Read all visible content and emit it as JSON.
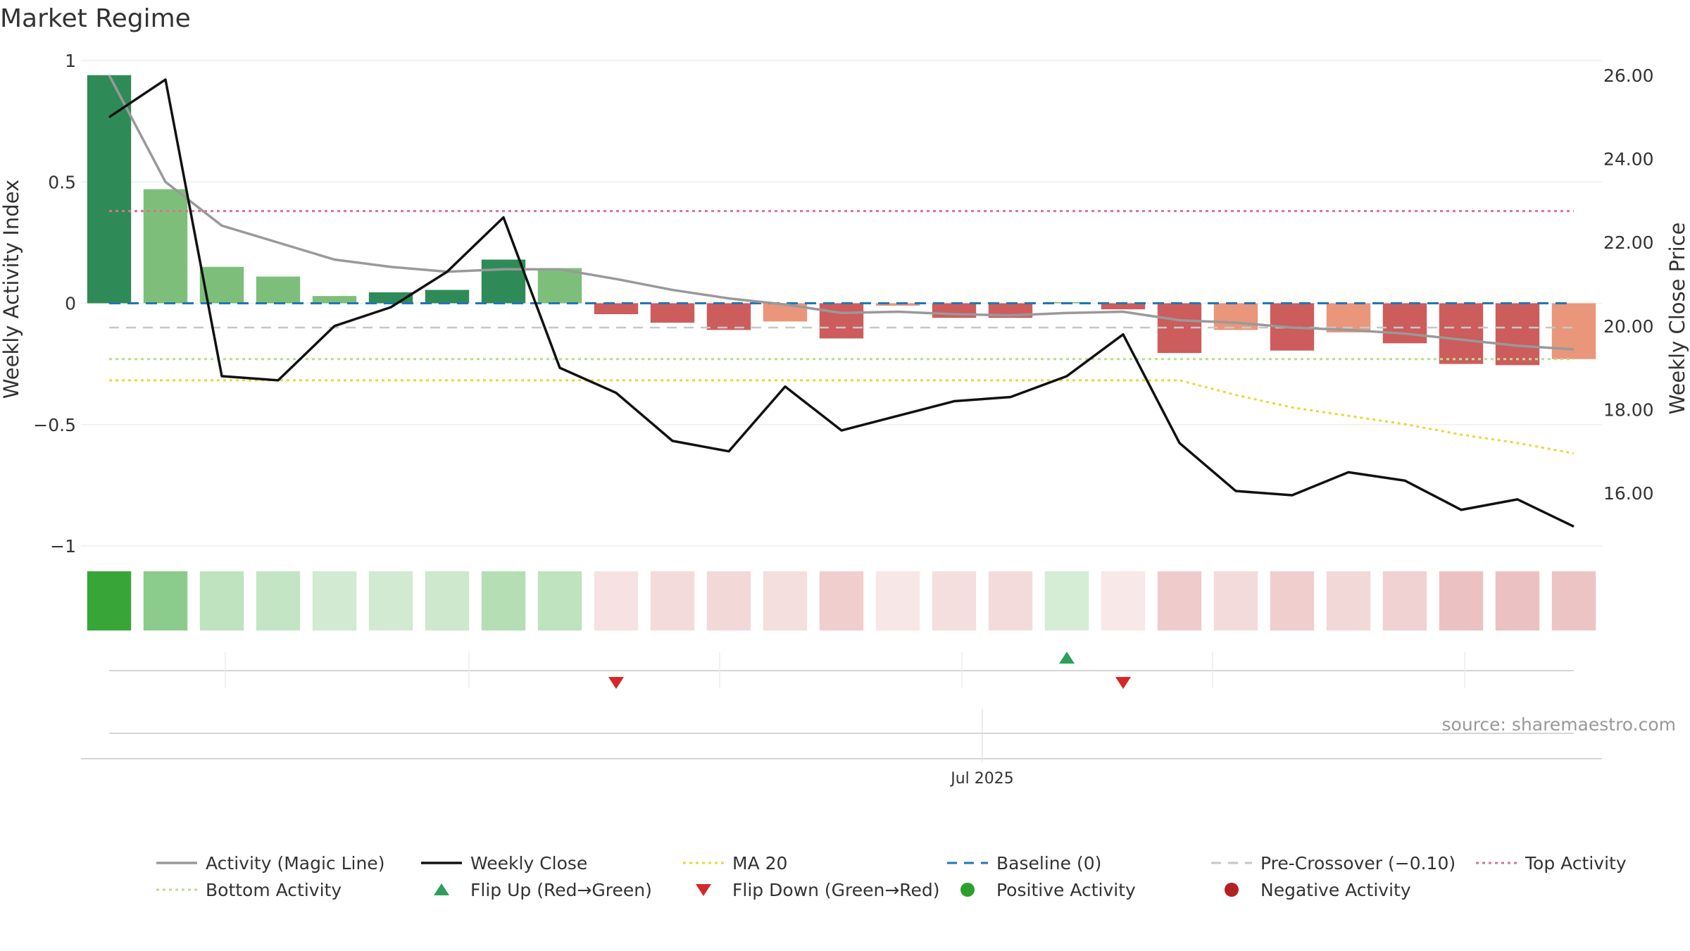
{
  "title": "Market Regime",
  "source": "source: sharemaestro.com",
  "colors": {
    "strong_green": "#2e8b57",
    "light_green": "#7dbf7a",
    "strong_red": "#cd5c5c",
    "light_red": "#e9967a",
    "magic_line": "#999999",
    "close_line": "#111111",
    "ma20": "#e8d83a",
    "baseline": "#1f77b4",
    "pre_crossover": "#c7c7c7",
    "top_activity": "#d9748f",
    "bottom_activity": "#b5e08a",
    "flip_up": "#2ca05a",
    "flip_down": "#d62728",
    "positive": "#2ca02c",
    "negative": "#b22222"
  },
  "chart_data": {
    "type": "bar",
    "title": "Market Regime",
    "ylabel": "Weekly Activity Index",
    "y2label": "Weekly Close Price",
    "ylim": [
      -1,
      1
    ],
    "y2lim": [
      15,
      26.3
    ],
    "yticks": [
      {
        "v": 1,
        "label": "1"
      },
      {
        "v": 0.5,
        "label": "0.5"
      },
      {
        "v": 0,
        "label": "0"
      },
      {
        "v": -0.5,
        "label": "−0.5"
      },
      {
        "v": -1,
        "label": "−1"
      }
    ],
    "y2ticks": [
      {
        "v": 26,
        "label": "26.00"
      },
      {
        "v": 24,
        "label": "24.00"
      },
      {
        "v": 22,
        "label": "22.00"
      },
      {
        "v": 20,
        "label": "20.00"
      },
      {
        "v": 18,
        "label": "18.00"
      },
      {
        "v": 16,
        "label": "16.00"
      }
    ],
    "xtick_label": "Jul 2025",
    "xtick_week_index": 15.5,
    "activity": [
      0.94,
      0.47,
      0.15,
      0.11,
      0.03,
      0.045,
      0.055,
      0.18,
      0.145,
      -0.045,
      -0.08,
      -0.11,
      -0.075,
      -0.145,
      -0.01,
      -0.06,
      -0.06,
      0.005,
      -0.025,
      -0.205,
      -0.11,
      -0.195,
      -0.12,
      -0.165,
      -0.25,
      -0.255,
      -0.23
    ],
    "bar_strength": [
      "strong",
      "light",
      "light",
      "light",
      "light",
      "strong",
      "strong",
      "strong",
      "light",
      "strong",
      "strong",
      "strong",
      "light",
      "strong",
      "light",
      "strong",
      "strong",
      "light",
      "strong",
      "strong",
      "light",
      "strong",
      "light",
      "strong",
      "strong",
      "strong",
      "light"
    ],
    "magic_line": [
      0.94,
      0.5,
      0.32,
      0.25,
      0.18,
      0.15,
      0.13,
      0.14,
      0.14,
      0.1,
      0.055,
      0.02,
      -0.005,
      -0.04,
      -0.035,
      -0.045,
      -0.05,
      -0.04,
      -0.035,
      -0.07,
      -0.08,
      -0.1,
      -0.11,
      -0.125,
      -0.15,
      -0.175,
      -0.19
    ],
    "weekly_close": [
      25.0,
      25.9,
      18.8,
      18.7,
      20.0,
      20.45,
      21.3,
      22.6,
      19.0,
      18.4,
      17.25,
      17.0,
      18.55,
      17.5,
      17.85,
      18.2,
      18.3,
      18.8,
      19.8,
      17.2,
      16.05,
      15.95,
      16.5,
      16.3,
      15.6,
      15.85,
      15.2
    ],
    "ma20": [
      null,
      null,
      null,
      null,
      null,
      null,
      null,
      null,
      null,
      null,
      null,
      null,
      null,
      null,
      null,
      null,
      null,
      null,
      null,
      18.7,
      18.35,
      18.05,
      17.85,
      17.65,
      17.4,
      17.2,
      16.95
    ],
    "ma20_flat": 18.7,
    "baseline": 0,
    "pre_crossover": -0.1,
    "top_activity": 0.38,
    "bottom_activity": -0.23,
    "heat_strength": [
      0.95,
      0.55,
      0.3,
      0.28,
      0.22,
      0.22,
      0.24,
      0.35,
      0.3,
      0.18,
      0.22,
      0.24,
      0.2,
      0.3,
      0.15,
      0.2,
      0.22,
      0.2,
      0.14,
      0.32,
      0.22,
      0.3,
      0.24,
      0.28,
      0.38,
      0.38,
      0.36
    ],
    "flip_up_weeks": [
      17
    ],
    "flip_down_weeks": [
      9,
      18
    ],
    "legend": [
      {
        "label": "Activity (Magic Line)",
        "kind": "solid",
        "color": "#999999"
      },
      {
        "label": "Weekly Close",
        "kind": "solid",
        "color": "#111111"
      },
      {
        "label": "MA 20",
        "kind": "dotted",
        "color": "#e8d83a"
      },
      {
        "label": "Baseline (0)",
        "kind": "dashed",
        "color": "#1f77b4"
      },
      {
        "label": "Pre-Crossover (−0.10)",
        "kind": "dashed",
        "color": "#c7c7c7"
      },
      {
        "label": "Top Activity",
        "kind": "dotted",
        "color": "#d9748f"
      },
      {
        "label": "Bottom Activity",
        "kind": "dotted",
        "color": "#b5e08a"
      },
      {
        "label": "Flip Up (Red→Green)",
        "kind": "triangle-up",
        "color": "#2ca05a"
      },
      {
        "label": "Flip Down (Green→Red)",
        "kind": "triangle-down",
        "color": "#d62728"
      },
      {
        "label": "Positive Activity",
        "kind": "circle",
        "color": "#2ca02c"
      },
      {
        "label": "Negative Activity",
        "kind": "circle",
        "color": "#b22222"
      }
    ],
    "legend_placement": "bottom"
  }
}
